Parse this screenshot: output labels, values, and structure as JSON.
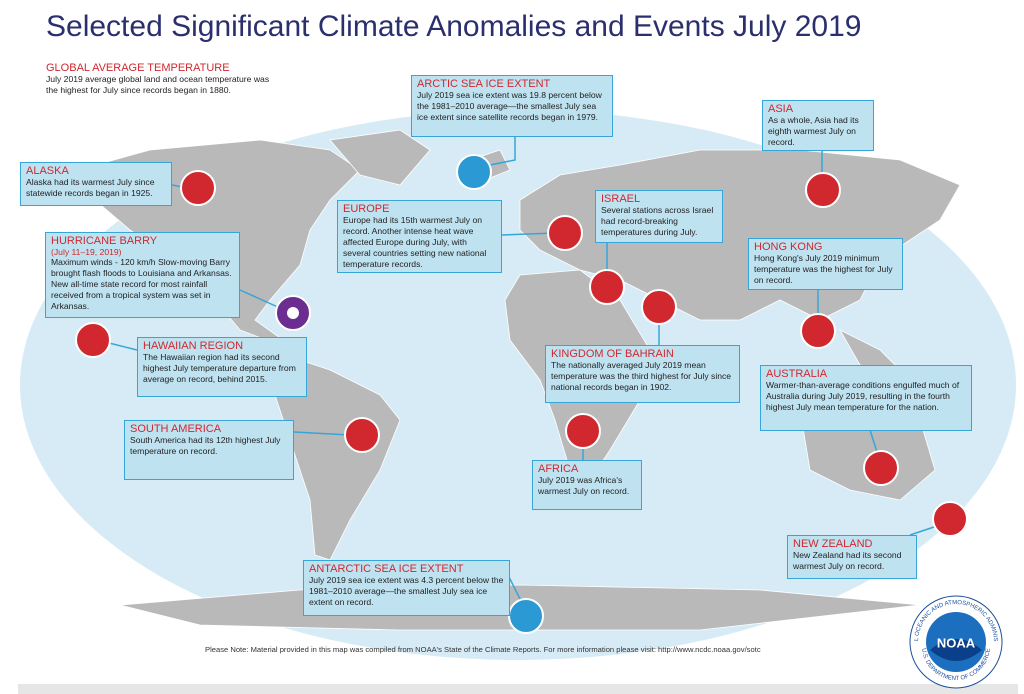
{
  "title": "Selected Significant Climate Anomalies and Events July 2019",
  "global": {
    "heading": "GLOBAL AVERAGE TEMPERATURE",
    "text": "July 2019 average global land and ocean temperature was the highest for July since records began in 1880."
  },
  "callouts": [
    {
      "heading": "ARCTIC SEA ICE EXTENT",
      "text": "July 2019 sea ice extent was 19.8 percent below the 1981–2010 average—the smallest July sea ice extent since satellite records began in 1979."
    },
    {
      "heading": "ASIA",
      "text": "As a whole, Asia had its eighth warmest July on record."
    },
    {
      "heading": "ALASKA",
      "text": "Alaska had its warmest July since statewide records began in 1925."
    },
    {
      "heading": "EUROPE",
      "text": "Europe had its 15th warmest July on record. Another intense heat wave affected Europe during July, with several countries setting new national temperature records."
    },
    {
      "heading": "ISRAEL",
      "text": "Several stations across Israel had record-breaking temperatures during July."
    },
    {
      "heading": "HURRICANE BARRY",
      "subheading": "(July 11–19, 2019)",
      "text": "Maximum winds - 120 km/h Slow-moving Barry brought flash floods to Louisiana and Arkansas. New all-time state record for most rainfall received from a tropical system was set in Arkansas."
    },
    {
      "heading": "HONG KONG",
      "text": "Hong Kong's July 2019 minimum temperature was the highest for July on record."
    },
    {
      "heading": "HAWAIIAN REGION",
      "text": "The Hawaiian region had its second highest July temperature departure from average on record, behind 2015."
    },
    {
      "heading": "KINGDOM OF BAHRAIN",
      "text": "The nationally averaged July 2019 mean temperature was the third highest for July since national records began in 1902."
    },
    {
      "heading": "AUSTRALIA",
      "text": "Warmer-than-average conditions engulfed much of Australia during July 2019, resulting in the fourth highest July mean temperature for the nation."
    },
    {
      "heading": "SOUTH AMERICA",
      "text": "South America had its 12th highest July temperature on record."
    },
    {
      "heading": "AFRICA",
      "text": "July 2019 was Africa's warmest July on record."
    },
    {
      "heading": "NEW ZEALAND",
      "text": "New Zealand had its second warmest July on record."
    },
    {
      "heading": "ANTARCTIC SEA ICE EXTENT",
      "text": "July 2019 sea ice extent was 4.3 percent below the 1981–2010 average—the smallest July sea ice extent on record."
    }
  ],
  "note": "Please Note: Material provided in this map was compiled from NOAA's State of the Climate Reports. For more information please visit: http://www.ncdc.noaa.gov/sotc",
  "logo": {
    "name": "NOAA",
    "ring_top": "NATIONAL OCEANIC AND ATMOSPHERIC ADMINISTRATION",
    "ring_bottom": "U.S. DEPARTMENT OF COMMERCE"
  }
}
